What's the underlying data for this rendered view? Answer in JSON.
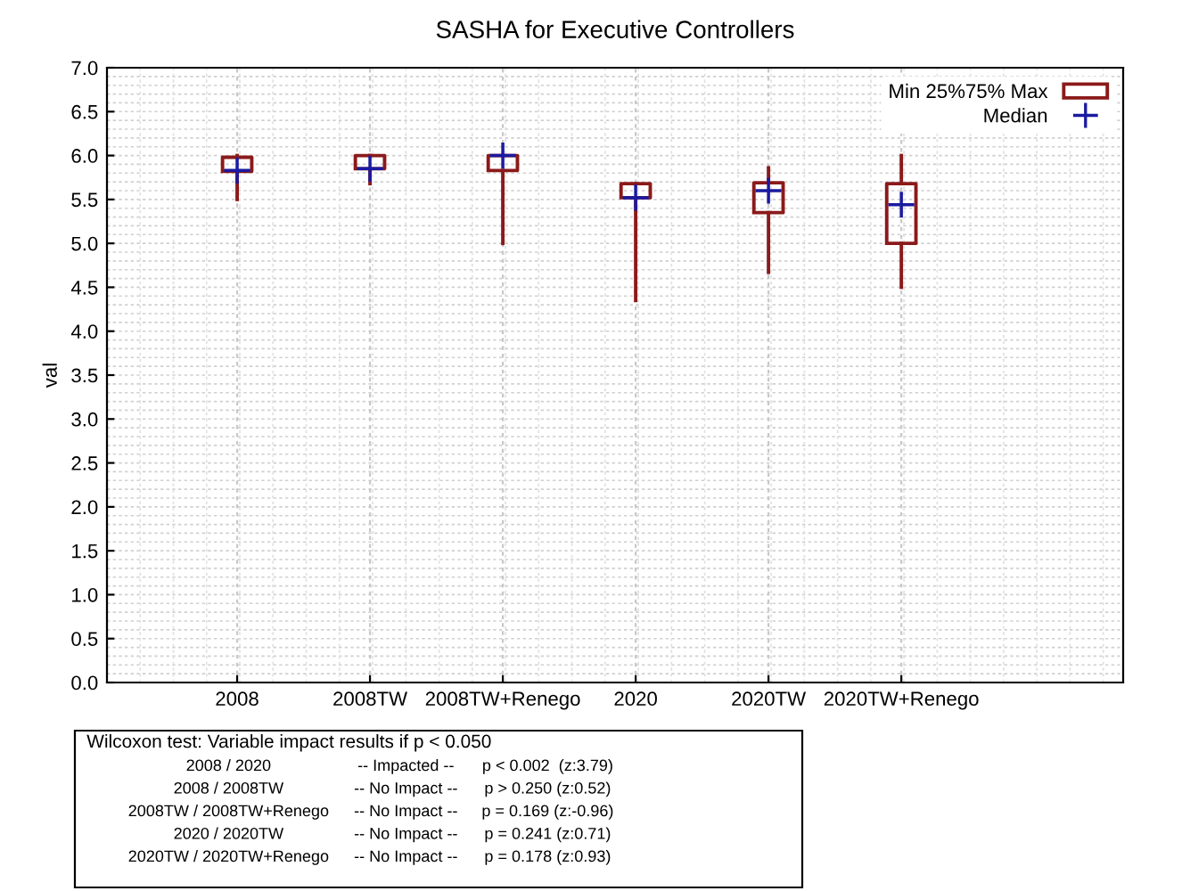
{
  "chart_data": {
    "type": "box",
    "title": "SASHA for Executive Controllers",
    "ylabel": "val",
    "categories": [
      "2008",
      "2008TW",
      "2008TW+Renego",
      "2020",
      "2020TW",
      "2020TW+Renego"
    ],
    "series": [
      {
        "name": "Min 25%75% Max",
        "color": "#8b1a1a",
        "boxes": [
          {
            "low": 5.5,
            "q1": 5.82,
            "q3": 5.98,
            "high": 6.0
          },
          {
            "low": 5.68,
            "q1": 5.85,
            "q3": 6.0,
            "high": 6.0
          },
          {
            "low": 5.0,
            "q1": 5.83,
            "q3": 6.0,
            "high": 6.0
          },
          {
            "low": 4.35,
            "q1": 5.52,
            "q3": 5.68,
            "high": 5.68
          },
          {
            "low": 4.67,
            "q1": 5.35,
            "q3": 5.69,
            "high": 5.86
          },
          {
            "low": 4.5,
            "q1": 5.0,
            "q3": 5.68,
            "high": 6.0
          }
        ]
      },
      {
        "name": "Median",
        "type": "scatter",
        "color": "#1a1aa0",
        "marker": "cross",
        "values": [
          5.83,
          5.85,
          6.0,
          5.52,
          5.6,
          5.44
        ]
      }
    ],
    "ylim": [
      0,
      7
    ],
    "yticks": [
      {
        "value": 0,
        "label": "0.0"
      },
      {
        "value": 0.5,
        "label": "0.5"
      },
      {
        "value": 1,
        "label": "1.0"
      },
      {
        "value": 1.5,
        "label": "1.5"
      },
      {
        "value": 2,
        "label": "2.0"
      },
      {
        "value": 2.5,
        "label": "2.5"
      },
      {
        "value": 3,
        "label": "3.0"
      },
      {
        "value": 3.5,
        "label": "3.5"
      },
      {
        "value": 4,
        "label": "4.0"
      },
      {
        "value": 4.5,
        "label": "4.5"
      },
      {
        "value": 5,
        "label": "5.0"
      },
      {
        "value": 5.5,
        "label": "5.5"
      },
      {
        "value": 6,
        "label": "6.0"
      },
      {
        "value": 6.5,
        "label": "6.5"
      },
      {
        "value": 7,
        "label": "7.0"
      }
    ],
    "grid": true,
    "legend": "top right",
    "annotations": [
      "Wilcoxon test: Variable impact results if p < 0.050",
      "2008 / 2020",
      "-- Impacted --",
      "p < 0.002  (z:3.79)",
      "2008 / 2008TW",
      "-- No Impact --",
      "p > 0.250 (z:0.52)",
      "2008TW / 2008TW+Renego",
      "-- No Impact --",
      "p = 0.169 (z:-0.96)",
      "2020 / 2020TW",
      "-- No Impact --",
      "p = 0.241 (z:0.71)",
      "2020TW / 2020TW+Renego",
      "-- No Impact --",
      "p = 0.178 (z:0.93)"
    ]
  }
}
